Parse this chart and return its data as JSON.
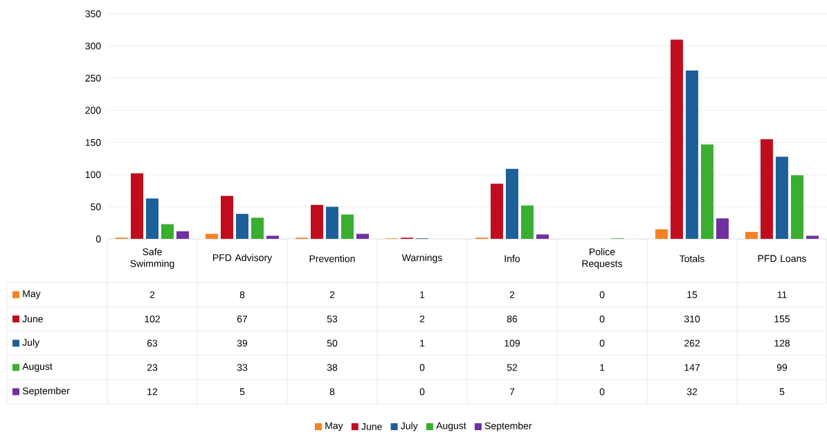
{
  "chart_data": {
    "type": "bar",
    "categories": [
      "Safe Swimming",
      "PFD Advisory",
      "Prevention",
      "Warnings",
      "Info",
      "Police Requests",
      "Totals",
      "PFD Loans"
    ],
    "series": [
      {
        "name": "May",
        "color": "#f58220",
        "values": [
          2,
          8,
          2,
          1,
          2,
          0,
          15,
          11
        ]
      },
      {
        "name": "June",
        "color": "#c00d1e",
        "values": [
          102,
          67,
          53,
          2,
          86,
          0,
          310,
          155
        ]
      },
      {
        "name": "July",
        "color": "#1d5f98",
        "values": [
          63,
          39,
          50,
          1,
          109,
          0,
          262,
          128
        ]
      },
      {
        "name": "August",
        "color": "#3aae2f",
        "values": [
          23,
          33,
          38,
          0,
          52,
          1,
          147,
          99
        ]
      },
      {
        "name": "September",
        "color": "#7030a0",
        "values": [
          12,
          5,
          8,
          0,
          7,
          0,
          32,
          5
        ]
      }
    ],
    "ylim": [
      0,
      350
    ],
    "yticks": [
      0,
      50,
      100,
      150,
      200,
      250,
      300,
      350
    ],
    "grid": "y",
    "legend": "bottom",
    "data_labels": true
  }
}
